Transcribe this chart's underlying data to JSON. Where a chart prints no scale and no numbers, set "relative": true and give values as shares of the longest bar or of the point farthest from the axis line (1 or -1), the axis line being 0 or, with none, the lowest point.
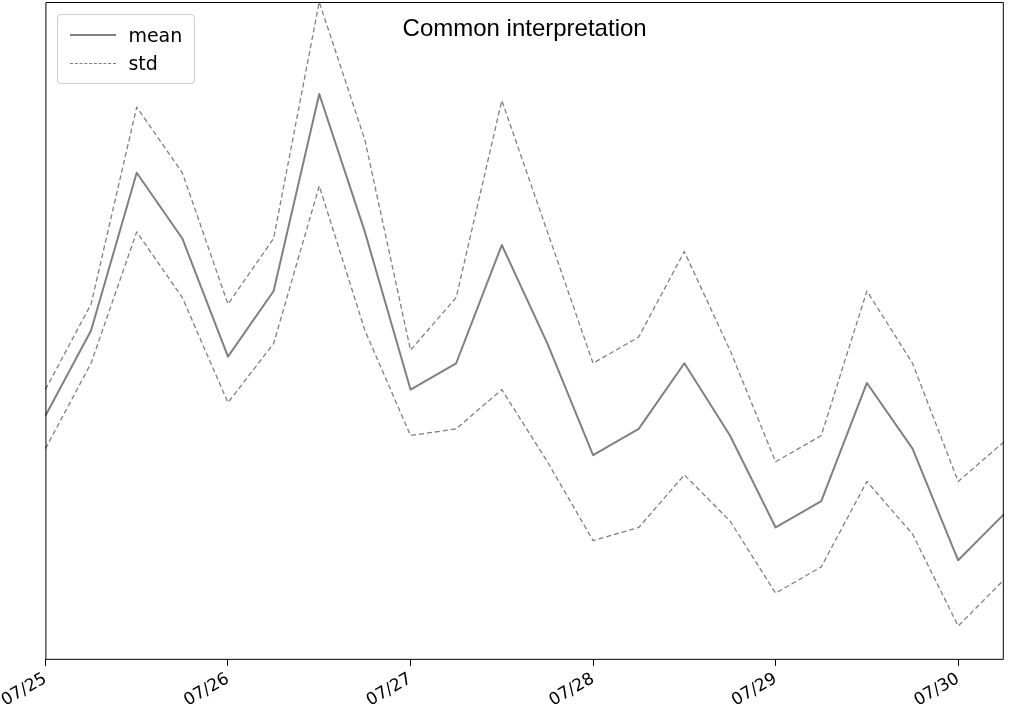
{
  "chart_data": {
    "type": "line",
    "title": "Common interpretation",
    "relative": true,
    "legend": "top left",
    "grid": false,
    "marker": "none",
    "categories": [
      "07/25",
      null,
      null,
      null,
      "07/26",
      null,
      null,
      null,
      "07/27",
      null,
      null,
      null,
      "07/28",
      null,
      null,
      null,
      "07/29",
      null,
      null,
      null,
      "07/30",
      null
    ],
    "series": [
      {
        "name": "mean",
        "color": "#808080",
        "line_style": "solid",
        "values": [
          0.37,
          0.5,
          0.74,
          0.64,
          0.46,
          0.56,
          0.86,
          0.65,
          0.41,
          0.45,
          0.63,
          0.48,
          0.31,
          0.35,
          0.45,
          0.34,
          0.2,
          0.24,
          0.42,
          0.32,
          0.15,
          0.22
        ]
      },
      {
        "name": "std",
        "color": "#808080",
        "line_style": "dashed",
        "values": [
          0.41,
          0.54,
          0.84,
          0.74,
          0.54,
          0.64,
          1,
          0.79,
          0.47,
          0.55,
          0.85,
          0.65,
          0.45,
          0.49,
          0.62,
          0.47,
          0.3,
          0.34,
          0.56,
          0.45,
          0.27,
          0.33
        ]
      },
      {
        "color": "#808080",
        "line_style": "dashed",
        "values": [
          0.32,
          0.45,
          0.65,
          0.55,
          0.39,
          0.48,
          0.72,
          0.5,
          0.34,
          0.35,
          0.41,
          0.3,
          0.18,
          0.2,
          0.28,
          0.21,
          0.1,
          0.14,
          0.27,
          0.19,
          0.05,
          0.12
        ]
      }
    ]
  }
}
